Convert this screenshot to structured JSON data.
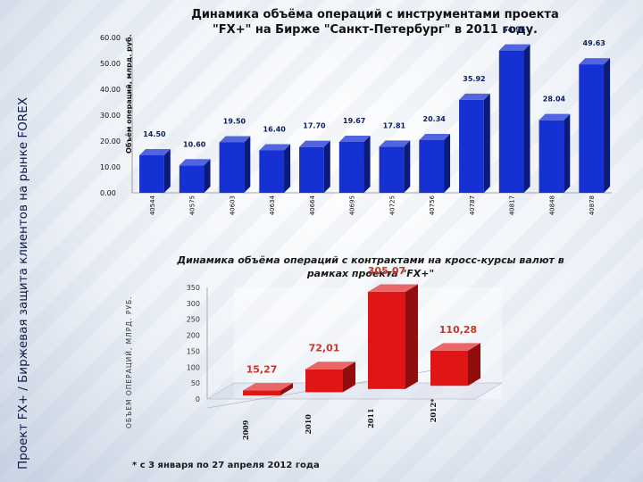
{
  "side_title": "Проект FX+ / Биржевая защита клиентов на рынке FOREX",
  "footnote": "* с 3 января по  27 апреля 2012 года",
  "chart_data": [
    {
      "type": "bar",
      "title": "Динамика объёма операций с инструментами проекта \"FX+\" на  Бирже \"Санкт-Петербург\" в  2011 году.",
      "ylabel": "Объём операций, млрд. руб.",
      "ylim": [
        0,
        60
      ],
      "yticks": [
        "0.00",
        "10.00",
        "20.00",
        "30.00",
        "40.00",
        "50.00",
        "60.00"
      ],
      "categories": [
        "40544",
        "40575",
        "40603",
        "40634",
        "40664",
        "40695",
        "40725",
        "40756",
        "40787",
        "40817",
        "40848",
        "40878"
      ],
      "values": [
        14.5,
        10.6,
        19.5,
        16.4,
        17.7,
        19.67,
        17.81,
        20.34,
        35.92,
        54.96,
        28.04,
        49.63
      ],
      "value_labels": [
        "14.50",
        "10.60",
        "19.50",
        "16.40",
        "17.70",
        "19.67",
        "17.81",
        "20.34",
        "35.92",
        "54.96",
        "28.04",
        "49.63"
      ],
      "color": "#1531d4"
    },
    {
      "type": "bar",
      "title": "Динамика объёма операций с контрактами на кросс-курсы валют    в рамках проекта \"FX+\"",
      "ylabel": "ОБЪЕМ ОПЕРАЦИЙ, МЛРД. РУБ.",
      "ylim": [
        0,
        350
      ],
      "yticks": [
        "0",
        "50",
        "100",
        "150",
        "200",
        "250",
        "300",
        "350"
      ],
      "categories": [
        "2009",
        "2010",
        "2011",
        "2012*"
      ],
      "values": [
        15.27,
        72.01,
        305.07,
        110.28
      ],
      "value_labels": [
        "15,27",
        "72,01",
        "305,07",
        "110,28"
      ],
      "color": "#e01515"
    }
  ]
}
